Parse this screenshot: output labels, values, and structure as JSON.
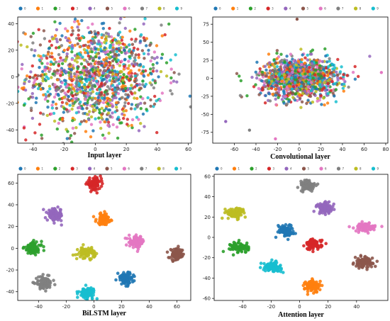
{
  "colors": [
    "#1f77b4",
    "#ff7f0e",
    "#2ca02c",
    "#d62728",
    "#9467bd",
    "#8c564b",
    "#e377c2",
    "#7f7f7f",
    "#bcbd22",
    "#17becf"
  ],
  "legend_labels": [
    "0",
    "1",
    "2",
    "3",
    "4",
    "5",
    "6",
    "7",
    "8",
    "9"
  ],
  "chart_data": [
    {
      "type": "scatter",
      "title": "Input layer",
      "xlabel": "",
      "ylabel": "",
      "xlim": [
        -50,
        62
      ],
      "ylim": [
        -50,
        45
      ],
      "xticks": [
        -40,
        -20,
        0,
        20,
        40,
        60
      ],
      "yticks": [
        -40,
        -20,
        0,
        20,
        40
      ],
      "legend": "top",
      "grid": false,
      "clusters": [
        {
          "class": "0",
          "center": [
            0,
            0
          ],
          "spread": [
            22,
            20
          ],
          "count": 130
        },
        {
          "class": "1",
          "center": [
            0,
            0
          ],
          "spread": [
            22,
            20
          ],
          "count": 130
        },
        {
          "class": "2",
          "center": [
            0,
            0
          ],
          "spread": [
            22,
            20
          ],
          "count": 130
        },
        {
          "class": "3",
          "center": [
            0,
            0
          ],
          "spread": [
            22,
            20
          ],
          "count": 130
        },
        {
          "class": "4",
          "center": [
            0,
            0
          ],
          "spread": [
            22,
            20
          ],
          "count": 130
        },
        {
          "class": "5",
          "center": [
            0,
            0
          ],
          "spread": [
            22,
            20
          ],
          "count": 130
        },
        {
          "class": "6",
          "center": [
            0,
            0
          ],
          "spread": [
            22,
            20
          ],
          "count": 130
        },
        {
          "class": "7",
          "center": [
            0,
            0
          ],
          "spread": [
            22,
            20
          ],
          "count": 130
        },
        {
          "class": "8",
          "center": [
            0,
            0
          ],
          "spread": [
            22,
            20
          ],
          "count": 130
        },
        {
          "class": "9",
          "center": [
            0,
            0
          ],
          "spread": [
            22,
            20
          ],
          "count": 130
        }
      ]
    },
    {
      "type": "scatter",
      "title": "Convolutional layer",
      "xlabel": "",
      "ylabel": "",
      "xlim": [
        -80,
        82
      ],
      "ylim": [
        -90,
        85
      ],
      "xticks": [
        -60,
        -40,
        -20,
        0,
        20,
        40,
        60,
        80
      ],
      "yticks": [
        -75,
        -50,
        -25,
        0,
        25,
        50,
        75
      ],
      "legend": "top",
      "grid": false,
      "clusters": [
        {
          "class": "0",
          "center": [
            0,
            0
          ],
          "spread": [
            18,
            14
          ],
          "count": 120
        },
        {
          "class": "1",
          "center": [
            0,
            0
          ],
          "spread": [
            18,
            14
          ],
          "count": 120
        },
        {
          "class": "2",
          "center": [
            0,
            0
          ],
          "spread": [
            18,
            14
          ],
          "count": 120
        },
        {
          "class": "3",
          "center": [
            0,
            0
          ],
          "spread": [
            18,
            14
          ],
          "count": 120
        },
        {
          "class": "4",
          "center": [
            0,
            0
          ],
          "spread": [
            18,
            14
          ],
          "count": 120
        },
        {
          "class": "5",
          "center": [
            0,
            0
          ],
          "spread": [
            18,
            14
          ],
          "count": 120
        },
        {
          "class": "6",
          "center": [
            0,
            0
          ],
          "spread": [
            18,
            14
          ],
          "count": 120
        },
        {
          "class": "7",
          "center": [
            0,
            0
          ],
          "spread": [
            18,
            14
          ],
          "count": 120
        },
        {
          "class": "8",
          "center": [
            0,
            0
          ],
          "spread": [
            18,
            14
          ],
          "count": 120
        },
        {
          "class": "9",
          "center": [
            5,
            2
          ],
          "spread": [
            14,
            12
          ],
          "count": 120
        }
      ],
      "outliers": [
        {
          "class": "5",
          "x": -2,
          "y": 82
        },
        {
          "class": "7",
          "x": -46,
          "y": -72
        },
        {
          "class": "4",
          "x": -68,
          "y": -60
        },
        {
          "class": "6",
          "x": -22,
          "y": -84
        },
        {
          "class": "6",
          "x": 76,
          "y": 8
        }
      ]
    },
    {
      "type": "scatter",
      "title": "BiLSTM  layer",
      "xlabel": "",
      "ylabel": "",
      "xlim": [
        -55,
        70
      ],
      "ylim": [
        -48,
        68
      ],
      "xticks": [
        -40,
        -20,
        0,
        20,
        40,
        60
      ],
      "yticks": [
        -40,
        -20,
        0,
        20,
        40,
        60
      ],
      "legend": "top",
      "grid": false,
      "clusters": [
        {
          "class": "0",
          "center": [
            23,
            -28
          ],
          "spread": [
            2.8,
            2.8
          ],
          "count": 90
        },
        {
          "class": "1",
          "center": [
            7,
            27
          ],
          "spread": [
            2.6,
            2.6
          ],
          "count": 90
        },
        {
          "class": "2",
          "center": [
            -44,
            0
          ],
          "spread": [
            3.2,
            2.8
          ],
          "count": 90
        },
        {
          "class": "3",
          "center": [
            0,
            59
          ],
          "spread": [
            2.6,
            2.6
          ],
          "count": 90
        },
        {
          "class": "4",
          "center": [
            -28,
            31
          ],
          "spread": [
            2.8,
            2.8
          ],
          "count": 90
        },
        {
          "class": "5",
          "center": [
            60,
            -6
          ],
          "spread": [
            2.6,
            2.6
          ],
          "count": 90
        },
        {
          "class": "6",
          "center": [
            31,
            6
          ],
          "spread": [
            2.8,
            2.6
          ],
          "count": 90
        },
        {
          "class": "7",
          "center": [
            -36,
            -32
          ],
          "spread": [
            3.0,
            2.8
          ],
          "count": 90
        },
        {
          "class": "8",
          "center": [
            -5,
            -4
          ],
          "spread": [
            3.0,
            2.4
          ],
          "count": 90
        },
        {
          "class": "9",
          "center": [
            -5,
            -41
          ],
          "spread": [
            2.8,
            2.6
          ],
          "count": 90
        }
      ]
    },
    {
      "type": "scatter",
      "title": "Attention layer",
      "xlabel": "",
      "ylabel": "",
      "xlim": [
        -60,
        62
      ],
      "ylim": [
        -62,
        62
      ],
      "xticks": [
        -40,
        -20,
        0,
        20,
        40
      ],
      "yticks": [
        -60,
        -40,
        -20,
        0,
        20,
        40,
        60
      ],
      "legend": "top",
      "grid": false,
      "clusters": [
        {
          "class": "0",
          "center": [
            -10,
            7
          ],
          "spread": [
            2.8,
            2.8
          ],
          "count": 90
        },
        {
          "class": "1",
          "center": [
            9,
            -48
          ],
          "spread": [
            2.6,
            3.0
          ],
          "count": 90
        },
        {
          "class": "2",
          "center": [
            -42,
            -10
          ],
          "spread": [
            3.2,
            2.6
          ],
          "count": 90
        },
        {
          "class": "3",
          "center": [
            10,
            -7
          ],
          "spread": [
            2.8,
            2.6
          ],
          "count": 90
        },
        {
          "class": "4",
          "center": [
            18,
            29
          ],
          "spread": [
            3.0,
            2.8
          ],
          "count": 90
        },
        {
          "class": "5",
          "center": [
            45,
            -25
          ],
          "spread": [
            3.2,
            2.6
          ],
          "count": 90
        },
        {
          "class": "6",
          "center": [
            46,
            10
          ],
          "spread": [
            3.6,
            2.0
          ],
          "count": 90
        },
        {
          "class": "7",
          "center": [
            6,
            51
          ],
          "spread": [
            2.8,
            2.8
          ],
          "count": 90
        },
        {
          "class": "8",
          "center": [
            -45,
            24
          ],
          "spread": [
            3.6,
            2.6
          ],
          "count": 90
        },
        {
          "class": "9",
          "center": [
            -19,
            -29
          ],
          "spread": [
            3.2,
            2.2
          ],
          "count": 90
        }
      ]
    }
  ]
}
